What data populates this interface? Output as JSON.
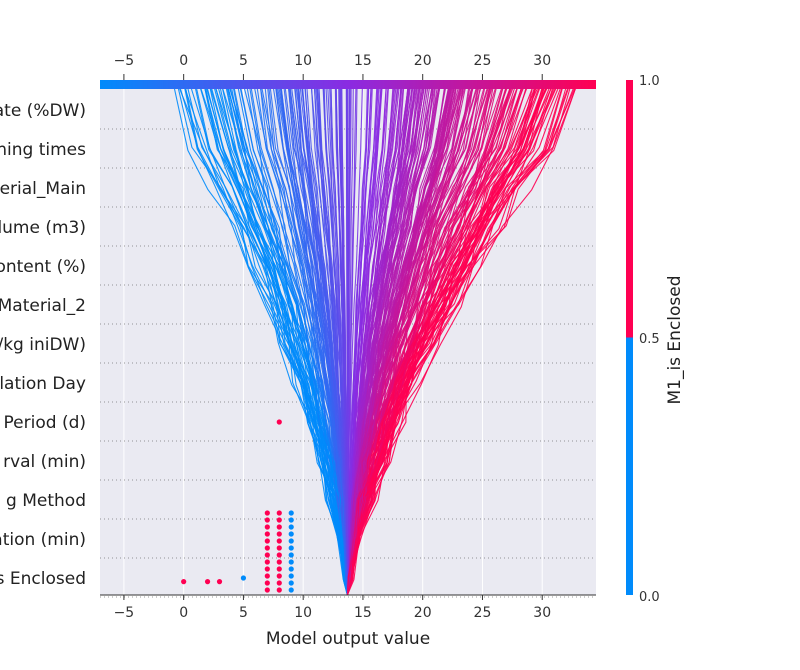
{
  "chart_data": {
    "type": "decision_plot",
    "xlabel": "Model output value",
    "x_ticks": [
      -5,
      0,
      5,
      10,
      15,
      20,
      25,
      30
    ],
    "x_tick_labels": [
      "−5",
      "0",
      "5",
      "10",
      "15",
      "20",
      "25",
      "30"
    ],
    "xlim": [
      -7,
      34.5
    ],
    "base_value": 13.7,
    "features_top_to_bottom": [
      "ate (%DW)",
      "ning times",
      "erial_Main",
      "lume (m3)",
      "ontent (%)",
      "Material_2",
      "/kg iniDW)",
      "lation Day",
      "Period (d)",
      "rval (min)",
      "g Method",
      "ation (min)",
      "s Enclosed"
    ],
    "colorbar": {
      "label": "M1_is Enclosed",
      "ticks": [
        "1.0",
        "0.5",
        "0.0"
      ],
      "low_color": "#008bfb",
      "high_color": "#ff0052",
      "mid_color": "#8a2be2"
    },
    "num_lines": 320,
    "final_value_range": [
      -1,
      33
    ],
    "scatter_points": [
      {
        "x": 8,
        "feature": "Period (d)",
        "value": 1
      },
      {
        "x": 0,
        "feature": "s Enclosed",
        "value": 1
      },
      {
        "x": 2,
        "feature": "s Enclosed",
        "value": 1
      },
      {
        "x": 3,
        "feature": "s Enclosed",
        "value": 1
      },
      {
        "x": 5,
        "feature": "s Enclosed",
        "value": 0
      },
      {
        "x": 7,
        "feature": "s Enclosed",
        "value": 1
      },
      {
        "x": 8,
        "feature": "s Enclosed",
        "value": 1
      },
      {
        "x": 9,
        "feature": "s Enclosed",
        "value": 0
      }
    ]
  }
}
